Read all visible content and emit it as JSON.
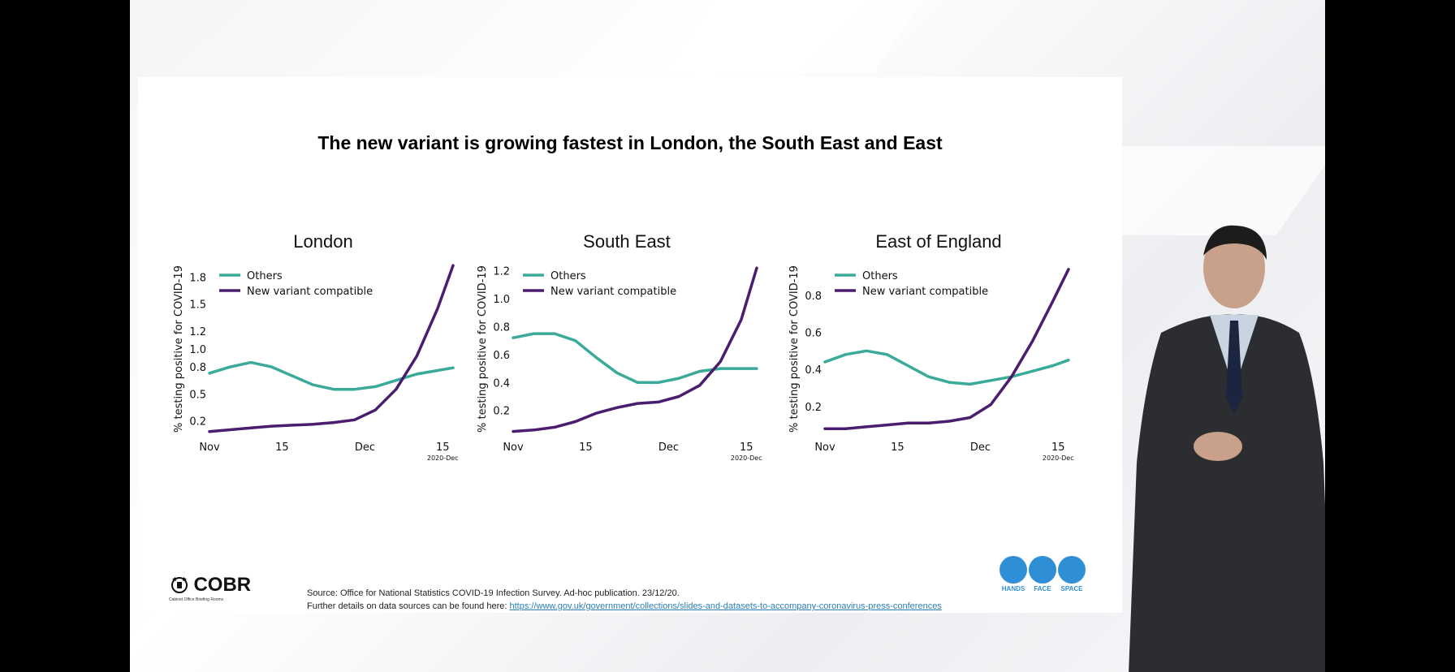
{
  "slide": {
    "title": "The new variant is growing fastest in London, the South East and East",
    "logo_text": "COBR",
    "logo_sub": "Cabinet Office Briefing Rooms",
    "source_line": "Source: Office for National Statistics COVID-19 Infection Survey. Ad-hoc publication. 23/12/20.",
    "details_prefix": "Further details on data sources can be found here: ",
    "details_link": "https://www.gov.uk/government/collections/slides-and-datasets-to-accompany-coronavirus-press-conferences",
    "badges": [
      {
        "label": "HANDS",
        "icon": "hands-icon"
      },
      {
        "label": "FACE",
        "icon": "face-mask-icon"
      },
      {
        "label": "SPACE",
        "icon": "space-arrows-icon"
      }
    ],
    "colors": {
      "others": "#3aaa99",
      "new_variant": "#4b1d6e",
      "badge": "#2f8fd6"
    }
  },
  "chart_data": [
    {
      "type": "line",
      "title": "London",
      "ylabel": "% testing positive for COVID-19",
      "xlabel": "",
      "x_ticks": [
        0,
        14,
        30,
        45
      ],
      "x_tick_labels": [
        "Nov",
        "15",
        "Dec",
        "15"
      ],
      "x_axis_note": "2020-Dec",
      "xlim": [
        0,
        47
      ],
      "y_ticks": [
        0.2,
        0.5,
        0.8,
        1.0,
        1.2,
        1.5,
        1.8
      ],
      "y_tick_labels": [
        "0.2",
        "0.5",
        "0.8",
        "1.0",
        "1.2",
        "1.5",
        "1.8"
      ],
      "ylim": [
        0.05,
        1.95
      ],
      "legend": "top-left",
      "x": [
        0,
        4,
        8,
        12,
        16,
        20,
        24,
        28,
        32,
        36,
        40,
        44,
        47
      ],
      "series": [
        {
          "name": "Others",
          "values": [
            0.73,
            0.8,
            0.85,
            0.8,
            0.7,
            0.6,
            0.55,
            0.55,
            0.58,
            0.65,
            0.72,
            0.76,
            0.79
          ]
        },
        {
          "name": "New variant compatible",
          "values": [
            0.08,
            0.1,
            0.12,
            0.14,
            0.15,
            0.16,
            0.18,
            0.21,
            0.32,
            0.55,
            0.92,
            1.45,
            1.93
          ]
        }
      ]
    },
    {
      "type": "line",
      "title": "South East",
      "ylabel": "% testing positive for COVID-19",
      "xlabel": "",
      "x_ticks": [
        0,
        14,
        30,
        45
      ],
      "x_tick_labels": [
        "Nov",
        "15",
        "Dec",
        "15"
      ],
      "x_axis_note": "2020-Dec",
      "xlim": [
        0,
        47
      ],
      "y_ticks": [
        0.2,
        0.4,
        0.6,
        0.8,
        1.0,
        1.2
      ],
      "y_tick_labels": [
        "0.2",
        "0.4",
        "0.6",
        "0.8",
        "1.0",
        "1.2"
      ],
      "ylim": [
        0.03,
        1.25
      ],
      "legend": "top-left",
      "x": [
        0,
        4,
        8,
        12,
        16,
        20,
        24,
        28,
        32,
        36,
        40,
        44,
        47
      ],
      "series": [
        {
          "name": "Others",
          "values": [
            0.72,
            0.75,
            0.75,
            0.7,
            0.58,
            0.47,
            0.4,
            0.4,
            0.43,
            0.48,
            0.5,
            0.5,
            0.5
          ]
        },
        {
          "name": "New variant compatible",
          "values": [
            0.05,
            0.06,
            0.08,
            0.12,
            0.18,
            0.22,
            0.25,
            0.26,
            0.3,
            0.38,
            0.55,
            0.85,
            1.22
          ]
        }
      ]
    },
    {
      "type": "line",
      "title": "East of England",
      "ylabel": "% testing positive for COVID-19",
      "xlabel": "",
      "x_ticks": [
        0,
        14,
        30,
        45
      ],
      "x_tick_labels": [
        "Nov",
        "15",
        "Dec",
        "15"
      ],
      "x_axis_note": "2020-Dec",
      "xlim": [
        0,
        47
      ],
      "y_ticks": [
        0.2,
        0.4,
        0.6,
        0.8
      ],
      "y_tick_labels": [
        "0.2",
        "0.4",
        "0.6",
        "0.8"
      ],
      "ylim": [
        0.05,
        0.97
      ],
      "legend": "top-left",
      "x": [
        0,
        4,
        8,
        12,
        16,
        20,
        24,
        28,
        32,
        36,
        40,
        44,
        47
      ],
      "series": [
        {
          "name": "Others",
          "values": [
            0.44,
            0.48,
            0.5,
            0.48,
            0.42,
            0.36,
            0.33,
            0.32,
            0.34,
            0.36,
            0.39,
            0.42,
            0.45
          ]
        },
        {
          "name": "New variant compatible",
          "values": [
            0.08,
            0.08,
            0.09,
            0.1,
            0.11,
            0.11,
            0.12,
            0.14,
            0.21,
            0.36,
            0.55,
            0.77,
            0.94
          ]
        }
      ]
    }
  ]
}
